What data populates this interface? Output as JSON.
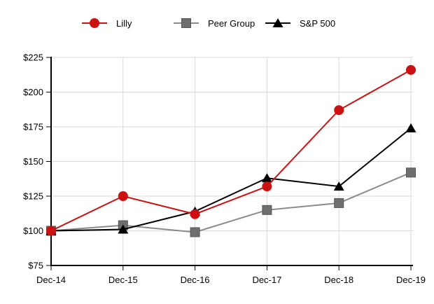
{
  "chart_data": {
    "type": "line",
    "title": "",
    "xlabel": "",
    "ylabel": "",
    "categories": [
      "Dec-14",
      "Dec-15",
      "Dec-16",
      "Dec-17",
      "Dec-18",
      "Dec-19"
    ],
    "series": [
      {
        "name": "Lilly",
        "marker": "circle",
        "color": "#CC1111",
        "values": [
          100,
          125,
          112,
          132,
          187,
          216
        ],
        "z": 3
      },
      {
        "name": "Peer Group",
        "marker": "square",
        "color": "#6E6E6E",
        "line_color": "#8A8A8A",
        "values": [
          100,
          104,
          99,
          115,
          120,
          142
        ],
        "z": 1
      },
      {
        "name": "S&P 500",
        "marker": "triangle",
        "color": "#000000",
        "values": [
          100,
          101,
          114,
          138,
          132,
          174
        ],
        "z": 2
      }
    ],
    "ylim": [
      75,
      225
    ],
    "ytick_step": 25,
    "ytick_labels": [
      "$75",
      "$100",
      "$125",
      "$150",
      "$175",
      "$200",
      "$225"
    ],
    "grid": true,
    "legend_position": "top",
    "legend_order": [
      "Lilly",
      "Peer Group",
      "S&P 500"
    ]
  },
  "colors": {
    "background": "#FFFFFF",
    "gridline": "#D9D9D9",
    "axis": "#000000",
    "tick": "#000000",
    "label_text": "#000000"
  }
}
